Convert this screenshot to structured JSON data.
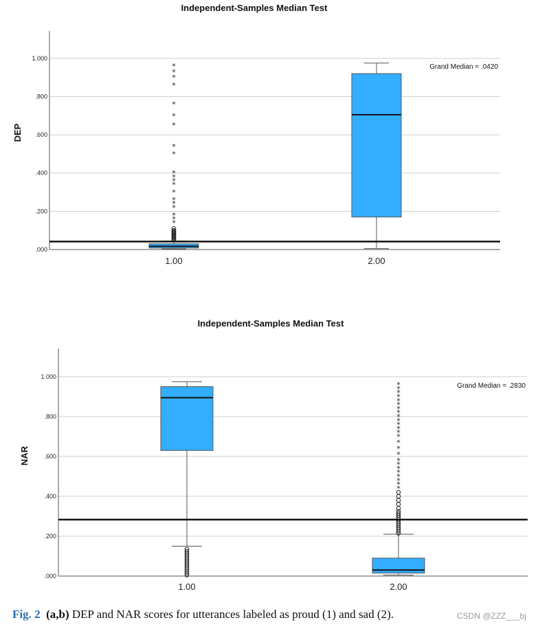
{
  "chart_data": [
    {
      "type": "boxplot",
      "title": "Independent-Samples Median Test",
      "ylabel": "DEP",
      "xlabel": "",
      "ylim": [
        0,
        1.1
      ],
      "yticks": [
        ".000",
        ".200",
        ".400",
        ".600",
        ".800",
        "1.000"
      ],
      "ytick_values": [
        0,
        0.2,
        0.4,
        0.6,
        0.8,
        1.0
      ],
      "grid": true,
      "categories": [
        "1.00",
        "2.00"
      ],
      "grand_median": 0.042,
      "grand_median_label": "Grand Median = .0420",
      "box_color": "#33adff",
      "boxes": [
        {
          "category": "1.00",
          "whisker_low": 0.003,
          "q1": 0.008,
          "median": 0.017,
          "q3": 0.03,
          "whisker_high": 0.045,
          "outliers_circle": [
            0.05,
            0.055,
            0.06,
            0.065,
            0.07,
            0.075,
            0.08,
            0.085,
            0.09,
            0.095,
            0.1,
            0.11
          ],
          "outliers_star": [
            0.14,
            0.16,
            0.18,
            0.22,
            0.24,
            0.26,
            0.3,
            0.34,
            0.36,
            0.38,
            0.4,
            0.5,
            0.54,
            0.65,
            0.7,
            0.76,
            0.86,
            0.9,
            0.93,
            0.96
          ]
        },
        {
          "category": "2.00",
          "whisker_low": 0.005,
          "q1": 0.17,
          "median": 0.705,
          "q3": 0.92,
          "whisker_high": 0.975,
          "outliers_circle": [],
          "outliers_star": []
        }
      ]
    },
    {
      "type": "boxplot",
      "title": "Independent-Samples Median Test",
      "ylabel": "NAR",
      "xlabel": "",
      "ylim": [
        0,
        1.1
      ],
      "yticks": [
        ".000",
        ".200",
        ".400",
        ".600",
        ".800",
        "1.000"
      ],
      "ytick_values": [
        0,
        0.2,
        0.4,
        0.6,
        0.8,
        1.0
      ],
      "grid": true,
      "categories": [
        "1.00",
        "2.00"
      ],
      "grand_median": 0.283,
      "grand_median_label": "Grand Median = .2830",
      "box_color": "#33adff",
      "boxes": [
        {
          "category": "1.00",
          "whisker_low": 0.15,
          "q1": 0.63,
          "median": 0.895,
          "q3": 0.95,
          "whisker_high": 0.975,
          "outliers_circle": [
            0.005,
            0.015,
            0.025,
            0.035,
            0.045,
            0.055,
            0.065,
            0.075,
            0.085,
            0.095,
            0.105,
            0.115,
            0.125,
            0.135
          ],
          "outliers_star": []
        },
        {
          "category": "2.00",
          "whisker_low": 0.005,
          "q1": 0.015,
          "median": 0.03,
          "q3": 0.09,
          "whisker_high": 0.21,
          "outliers_circle": [
            0.215,
            0.225,
            0.235,
            0.245,
            0.255,
            0.265,
            0.275,
            0.285,
            0.295,
            0.305,
            0.315,
            0.325,
            0.34,
            0.36,
            0.38,
            0.4,
            0.42
          ],
          "outliers_star": [
            0.44,
            0.46,
            0.48,
            0.5,
            0.52,
            0.54,
            0.56,
            0.58,
            0.61,
            0.64,
            0.67,
            0.7,
            0.72,
            0.74,
            0.76,
            0.78,
            0.8,
            0.82,
            0.84,
            0.86,
            0.88,
            0.9,
            0.92,
            0.94,
            0.96
          ]
        }
      ]
    }
  ],
  "caption": {
    "fig_label": "Fig. 2",
    "panels": "(a,b)",
    "text": "DEP and NAR scores for utterances labeled as proud (1) and sad (2)."
  },
  "watermark": "CSDN @ZZZ___bj"
}
